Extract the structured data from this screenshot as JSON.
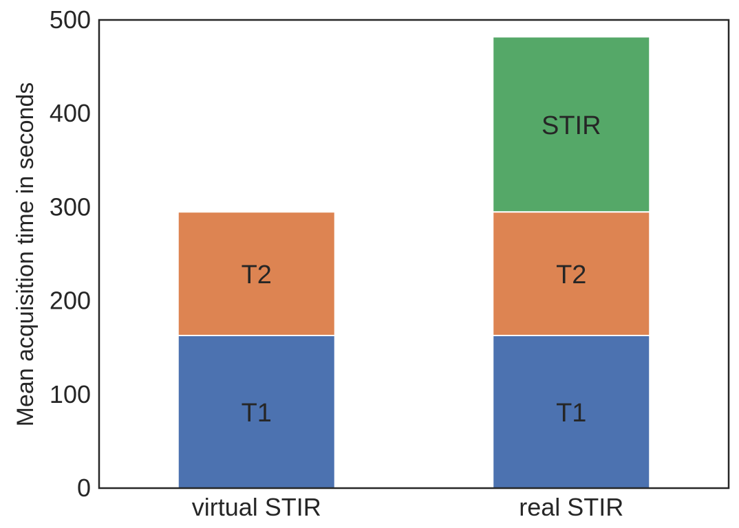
{
  "chart_data": {
    "type": "bar",
    "stacked": true,
    "title": "",
    "xlabel": "",
    "ylabel": "Mean acquisition time in seconds",
    "ylim": [
      0,
      500
    ],
    "yticks": [
      0,
      100,
      200,
      300,
      400,
      500
    ],
    "categories": [
      "virtual STIR",
      "real STIR"
    ],
    "series": [
      {
        "name": "T1",
        "values": [
          163,
          163
        ],
        "color": "#4c72b0"
      },
      {
        "name": "T2",
        "values": [
          132,
          132
        ],
        "color": "#dd8452"
      },
      {
        "name": "STIR",
        "values": [
          0,
          187
        ],
        "color": "#55a868"
      }
    ],
    "grid": false,
    "legend": "none"
  }
}
